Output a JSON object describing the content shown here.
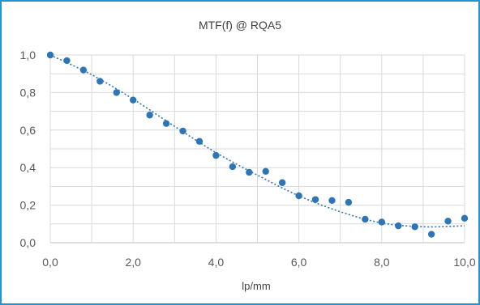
{
  "chart_data": {
    "type": "scatter",
    "title": "MTF(f) @ RQA5",
    "xlabel": "lp/mm",
    "ylabel": "",
    "xlim": [
      0,
      10
    ],
    "ylim": [
      0,
      1
    ],
    "x_ticks": [
      "0,0",
      "2,0",
      "4,0",
      "6,0",
      "8,0",
      "10,0"
    ],
    "y_ticks": [
      "0,0",
      "0,2",
      "0,4",
      "0,6",
      "0,8",
      "1,0"
    ],
    "grid": true,
    "legend": "none",
    "series": [
      {
        "marker_color": "#2e75b6",
        "x": [
          0.0,
          0.4,
          0.8,
          1.2,
          1.6,
          2.0,
          2.4,
          2.8,
          3.2,
          3.6,
          4.0,
          4.4,
          4.8,
          5.2,
          5.6,
          6.0,
          6.4,
          6.8,
          7.2,
          7.6,
          8.0,
          8.4,
          8.8,
          9.2,
          9.6,
          10.0
        ],
        "y": [
          1.0,
          0.97,
          0.92,
          0.86,
          0.8,
          0.76,
          0.68,
          0.635,
          0.595,
          0.54,
          0.465,
          0.405,
          0.375,
          0.38,
          0.32,
          0.25,
          0.23,
          0.225,
          0.215,
          0.125,
          0.11,
          0.09,
          0.085,
          0.045,
          0.115,
          0.13
        ]
      }
    ],
    "trendline": {
      "style": "dotted",
      "color": "#2e75b6",
      "x": [
        0,
        1,
        2,
        3,
        4,
        5,
        6,
        7,
        8,
        9,
        10
      ],
      "y": [
        1.0,
        0.895,
        0.765,
        0.62,
        0.48,
        0.36,
        0.25,
        0.165,
        0.105,
        0.085,
        0.09
      ]
    }
  },
  "colors": {
    "frame": "#1b95d6",
    "grid": "#d9d9d9",
    "axis": "#bfbfbf",
    "marker": "#2e75b6"
  }
}
